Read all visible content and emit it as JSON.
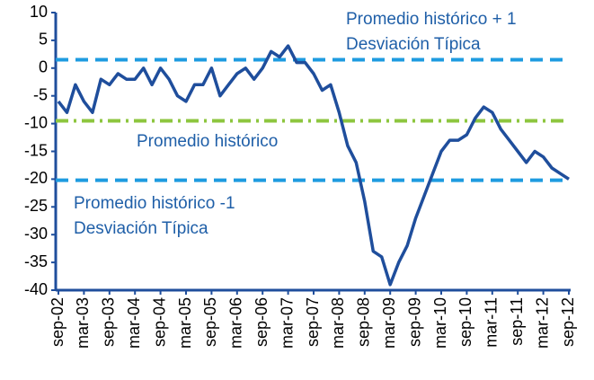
{
  "chart_data": {
    "type": "line",
    "categories": [
      "sep-02",
      null,
      null,
      "mar-03",
      null,
      null,
      "sep-03",
      null,
      null,
      "mar-04",
      null,
      null,
      "sep-04",
      null,
      null,
      "mar-05",
      null,
      null,
      "sep-05",
      null,
      null,
      "mar-06",
      null,
      null,
      "sep-06",
      null,
      null,
      "mar-07",
      null,
      null,
      "sep-07",
      null,
      null,
      "mar-08",
      null,
      null,
      "sep-08",
      null,
      null,
      "mar-09",
      null,
      null,
      "sep-09",
      null,
      null,
      "mar-10",
      null,
      null,
      "sep-10",
      null,
      null,
      "mar-11",
      null,
      null,
      "sep-11",
      null,
      null,
      "mar-12",
      null,
      null,
      "sep-12"
    ],
    "series": [
      {
        "color": "#1f4e9c",
        "values": [
          -6,
          -8,
          -3,
          -6,
          -8,
          -2,
          -3,
          -1,
          -2,
          -2,
          0,
          -3,
          0,
          -2,
          -5,
          -6,
          -3,
          -3,
          0,
          -5,
          -3,
          -1,
          0,
          -2,
          0,
          3,
          2,
          4,
          1,
          1,
          -1,
          -4,
          -3,
          -8,
          -14,
          -17,
          -24,
          -33,
          -34,
          -39,
          -35,
          -32,
          -27,
          -23,
          -19,
          -15,
          -13,
          -13,
          -12,
          -9,
          -7,
          -8,
          -11,
          -13,
          -15,
          -17,
          -15,
          -16,
          -18,
          -19,
          -20
        ]
      }
    ],
    "reference_lines": [
      {
        "value": 1.5,
        "color": "#1e9be0",
        "style": "dashed"
      },
      {
        "value": -9.5,
        "color": "#8dc63f",
        "style": "dashdot"
      },
      {
        "value": -20.2,
        "color": "#1e9be0",
        "style": "dashed"
      }
    ],
    "annotations": [
      [
        "Promedio histórico + 1",
        "Desviación Típica"
      ],
      [
        "Promedio histórico"
      ],
      [
        "Promedio histórico -1",
        "Desviación Típica"
      ]
    ],
    "ylim": [
      -40,
      10
    ],
    "yticks": [
      10,
      5,
      0,
      -5,
      -10,
      -15,
      -20,
      -25,
      -30,
      -35,
      -40
    ],
    "grid": false
  }
}
